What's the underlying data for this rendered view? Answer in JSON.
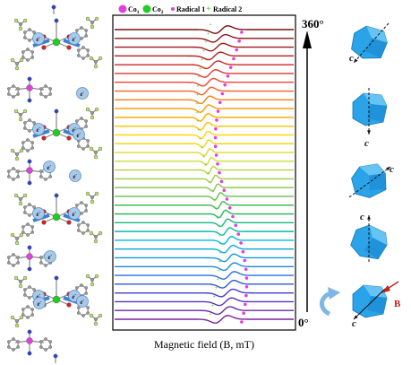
{
  "legend": {
    "items": [
      {
        "symbol": "●",
        "label": "Co",
        "subscript": "1",
        "color": "#e040e0"
      },
      {
        "symbol": "●",
        "label": "Co",
        "subscript": "2",
        "color": "#22cc22"
      },
      {
        "symbol": "•",
        "label": "Radical 1",
        "subscript": "",
        "color": "#e040e0"
      },
      {
        "symbol": "+",
        "label": "Radical 2",
        "subscript": "",
        "color": "#66cc33"
      }
    ]
  },
  "angle_axis": {
    "top_label": "360°",
    "bottom_label": "0°"
  },
  "xlabel": "Magnetic field (B, mT)",
  "crystal": {
    "axis_label": "c",
    "field_label": "B",
    "field_color": "#c0211a",
    "face_color": "#2aa3e8"
  },
  "molecule": {
    "electron_label": "e",
    "electron_sup": "-"
  },
  "spectra": {
    "count": 34,
    "colors_bottom_to_top": [
      "#7b1fa2",
      "#3f3fd0",
      "#1e88e5",
      "#00bcd4",
      "#1db954",
      "#8bc34a",
      "#cddc39",
      "#ffd600",
      "#ff9800",
      "#f44336",
      "#b71c1c",
      "#7a1010"
    ]
  }
}
